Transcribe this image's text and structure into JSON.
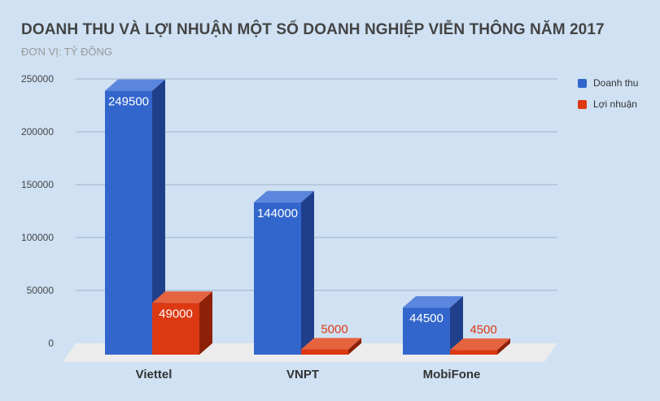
{
  "header": {
    "title": "DOANH THU VÀ LỢI NHUẬN MỘT SỐ DOANH NGHIỆP VIỄN THÔNG NĂM 2017",
    "subtitle": "ĐƠN VỊ: TỶ ĐỒNG"
  },
  "legend": {
    "items": [
      {
        "label": "Doanh thu",
        "color": "#3366cc"
      },
      {
        "label": "Lợi nhuận",
        "color": "#dc3912"
      }
    ]
  },
  "colors": {
    "background": "#cfe1f3",
    "revenue_front": "#3366cc",
    "revenue_side": "#1f3f8a",
    "revenue_top": "#5b86dd",
    "profit_front": "#dc3912",
    "profit_side": "#8c2108",
    "profit_top": "#e5643f",
    "floor": "#ececec"
  },
  "chart_data": {
    "type": "bar",
    "title": "DOANH THU VÀ LỢI NHUẬN MỘT SỐ DOANH NGHIỆP VIỄN THÔNG NĂM 2017",
    "subtitle": "ĐƠN VỊ: TỶ ĐỒNG",
    "categories": [
      "Viettel",
      "VNPT",
      "MobiFone"
    ],
    "series": [
      {
        "name": "Doanh thu",
        "values": [
          249500,
          144000,
          44500
        ]
      },
      {
        "name": "Lợi nhuận",
        "values": [
          49000,
          5000,
          4500
        ]
      }
    ],
    "xlabel": "",
    "ylabel": "",
    "ylim": [
      0,
      250000
    ],
    "yticks": [
      "0",
      "50000",
      "100000",
      "150000",
      "200000",
      "250000"
    ],
    "grid": true,
    "legend_position": "right",
    "style": "3d"
  }
}
